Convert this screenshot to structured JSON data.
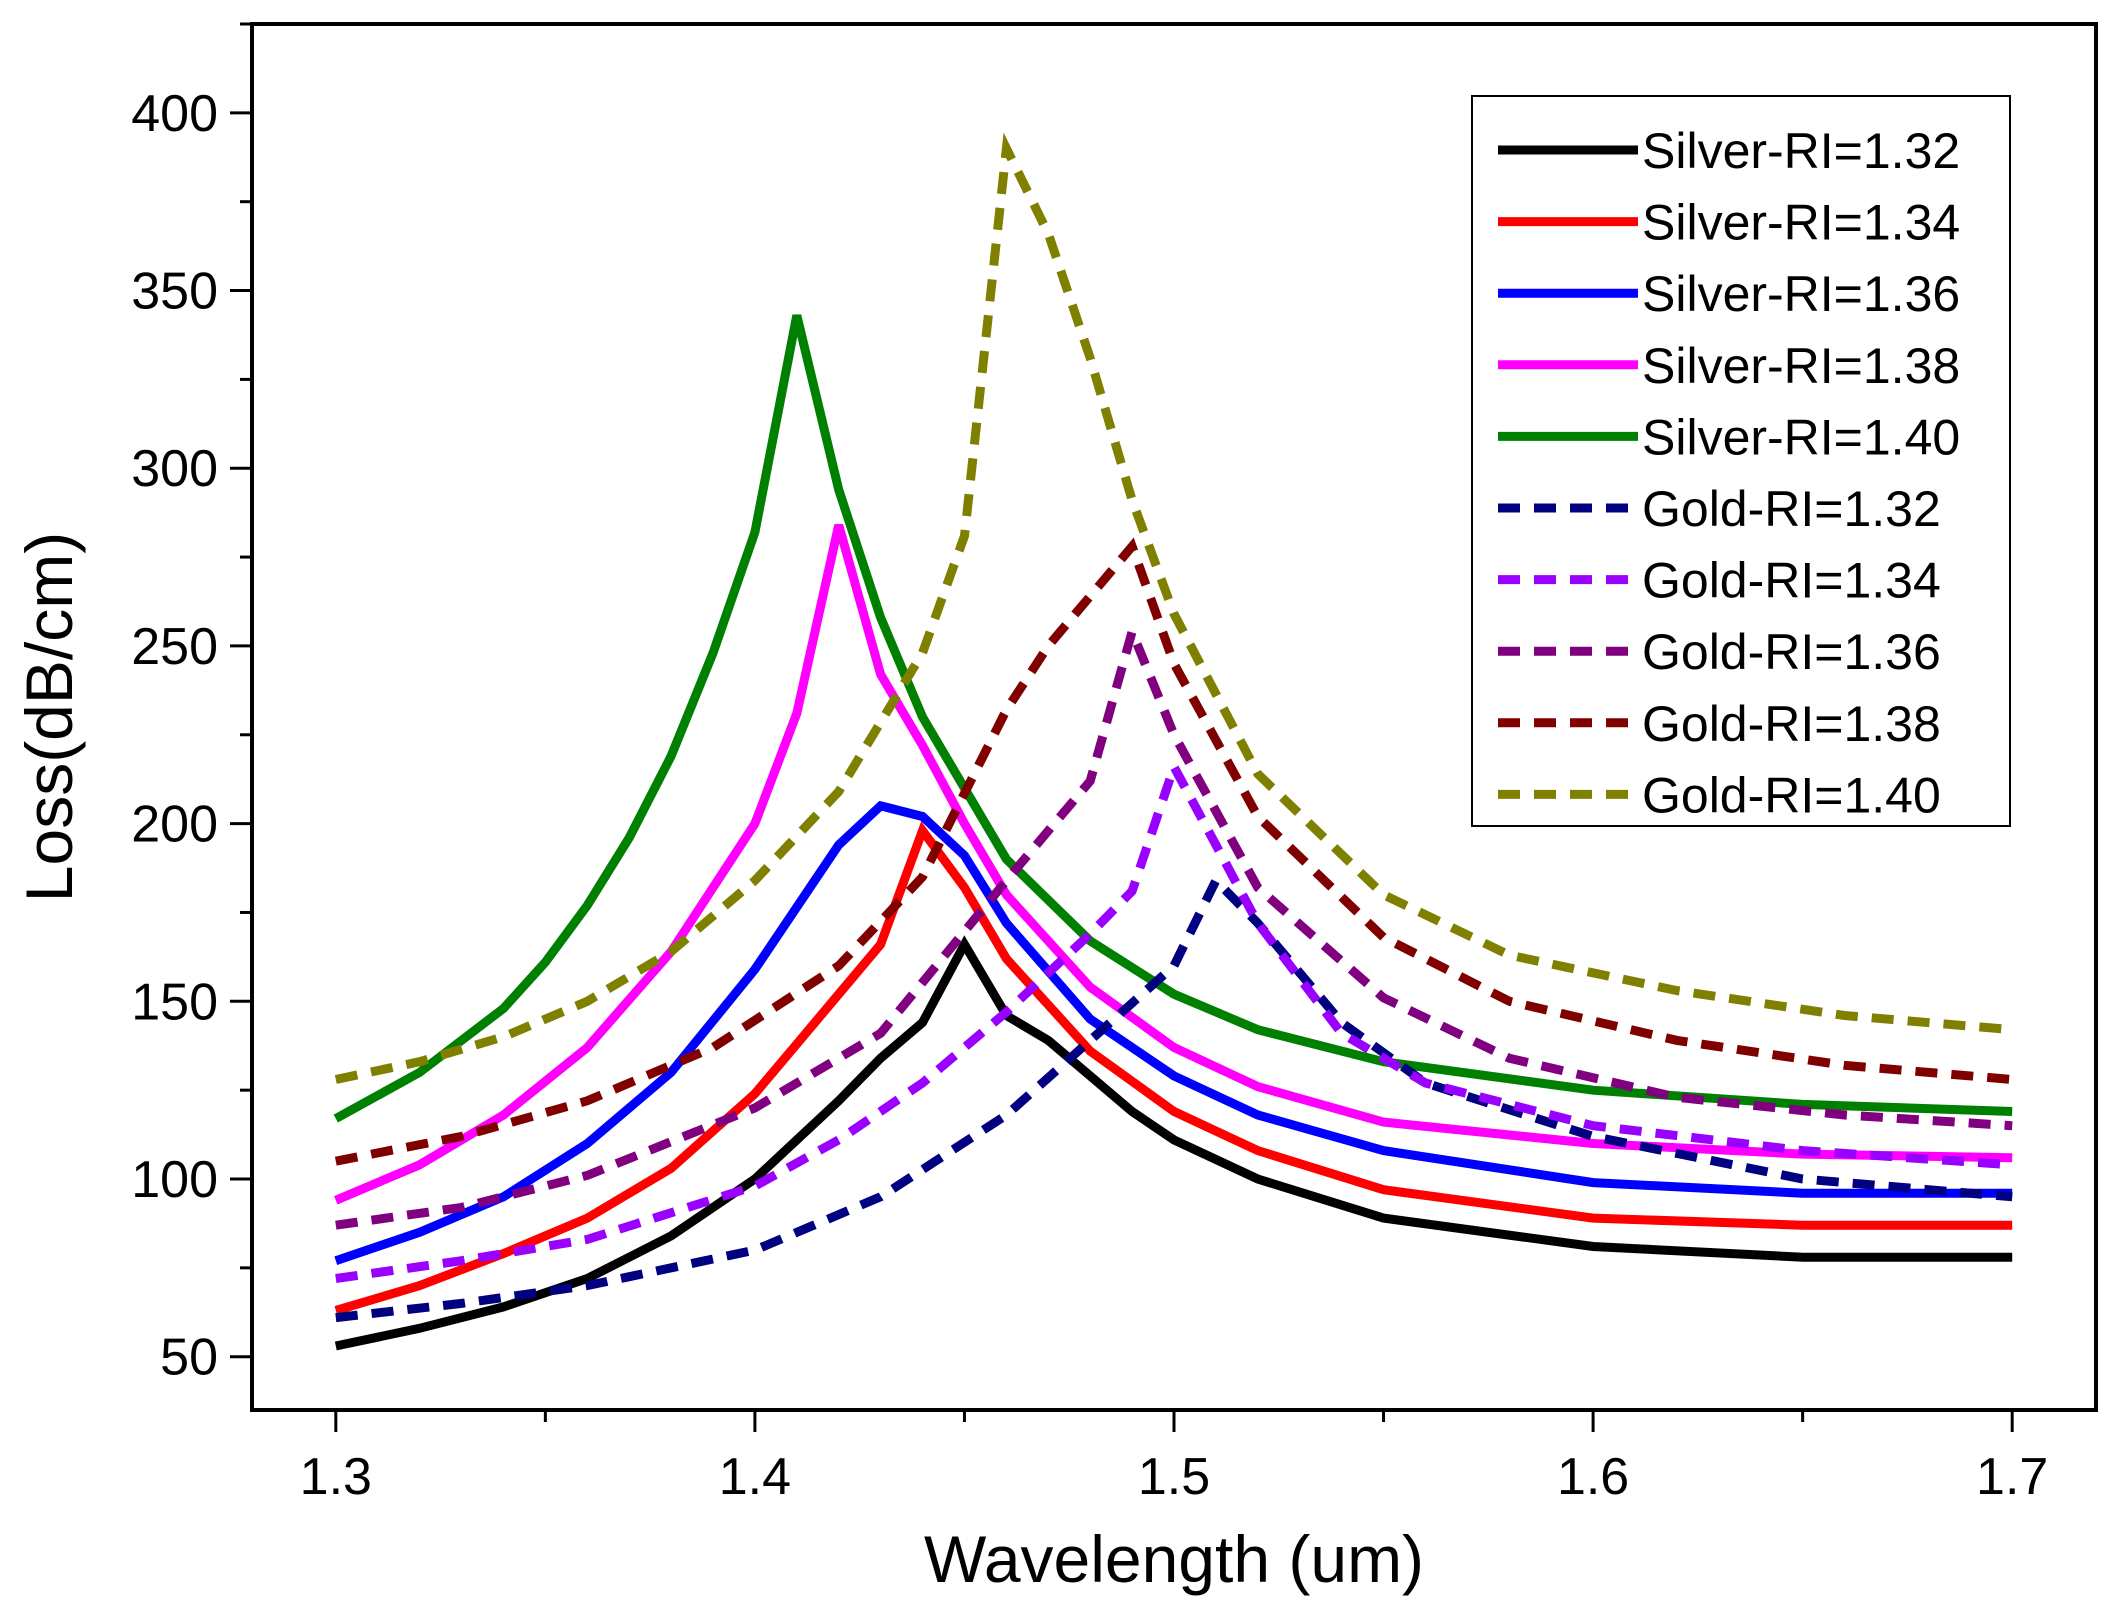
{
  "chart_data": {
    "type": "line",
    "title": "",
    "xlabel": "Wavelength (um)",
    "ylabel": "Loss(dB/cm)",
    "xlim": [
      1.28,
      1.72
    ],
    "ylim": [
      35,
      425
    ],
    "xticks": [
      1.3,
      1.4,
      1.5,
      1.6,
      1.7
    ],
    "xtick_labels": [
      "1.3",
      "1.4",
      "1.5",
      "1.6",
      "1.7"
    ],
    "x_minor_step": 0.05,
    "yticks": [
      50,
      100,
      150,
      200,
      250,
      300,
      350,
      400
    ],
    "ytick_labels": [
      "50",
      "100",
      "150",
      "200",
      "250",
      "300",
      "350",
      "400"
    ],
    "y_minor_step": 25,
    "grid": false,
    "legend_position": "top-right",
    "series": [
      {
        "name": "Silver-RI=1.32",
        "color": "#000000",
        "dash": "solid",
        "x": [
          1.3,
          1.32,
          1.34,
          1.36,
          1.38,
          1.4,
          1.42,
          1.43,
          1.44,
          1.45,
          1.46,
          1.47,
          1.48,
          1.49,
          1.5,
          1.52,
          1.55,
          1.6,
          1.65,
          1.7
        ],
        "y": [
          53,
          58,
          64,
          72,
          84,
          100,
          122,
          134,
          144,
          166,
          146,
          139,
          129,
          119,
          111,
          100,
          89,
          81,
          78,
          78
        ]
      },
      {
        "name": "Silver-RI=1.34",
        "color": "#ff0000",
        "dash": "solid",
        "x": [
          1.3,
          1.32,
          1.34,
          1.36,
          1.38,
          1.4,
          1.41,
          1.42,
          1.43,
          1.44,
          1.45,
          1.46,
          1.48,
          1.5,
          1.52,
          1.55,
          1.6,
          1.65,
          1.7
        ],
        "y": [
          63,
          70,
          79,
          89,
          103,
          124,
          138,
          152,
          166,
          198,
          182,
          162,
          136,
          119,
          108,
          97,
          89,
          87,
          87
        ]
      },
      {
        "name": "Silver-RI=1.36",
        "color": "#0000ff",
        "dash": "solid",
        "x": [
          1.3,
          1.32,
          1.34,
          1.36,
          1.38,
          1.4,
          1.42,
          1.43,
          1.44,
          1.45,
          1.46,
          1.48,
          1.5,
          1.52,
          1.55,
          1.6,
          1.65,
          1.7
        ],
        "y": [
          77,
          85,
          95,
          110,
          130,
          159,
          194,
          205,
          202,
          191,
          172,
          145,
          129,
          118,
          108,
          99,
          96,
          96
        ]
      },
      {
        "name": "Silver-RI=1.38",
        "color": "#ff00ff",
        "dash": "solid",
        "x": [
          1.3,
          1.32,
          1.34,
          1.36,
          1.38,
          1.4,
          1.41,
          1.42,
          1.43,
          1.44,
          1.45,
          1.46,
          1.48,
          1.5,
          1.52,
          1.55,
          1.6,
          1.65,
          1.7
        ],
        "y": [
          94,
          104,
          118,
          137,
          164,
          200,
          231,
          284,
          242,
          222,
          200,
          180,
          154,
          137,
          126,
          116,
          110,
          107,
          106
        ]
      },
      {
        "name": "Silver-RI=1.40",
        "color": "#008000",
        "dash": "solid",
        "x": [
          1.3,
          1.32,
          1.34,
          1.35,
          1.36,
          1.37,
          1.38,
          1.39,
          1.4,
          1.41,
          1.42,
          1.43,
          1.44,
          1.46,
          1.48,
          1.5,
          1.52,
          1.55,
          1.6,
          1.65,
          1.7
        ],
        "y": [
          117,
          130,
          148,
          161,
          177,
          196,
          219,
          248,
          282,
          343,
          294,
          258,
          230,
          190,
          167,
          152,
          142,
          133,
          125,
          121,
          119
        ]
      },
      {
        "name": "Gold-RI=1.32",
        "color": "#000080",
        "dash": "dashed",
        "x": [
          1.3,
          1.33,
          1.36,
          1.4,
          1.43,
          1.46,
          1.48,
          1.5,
          1.51,
          1.52,
          1.54,
          1.56,
          1.6,
          1.65,
          1.7
        ],
        "y": [
          61,
          65,
          70,
          80,
          95,
          118,
          139,
          160,
          184,
          172,
          144,
          127,
          112,
          100,
          95
        ]
      },
      {
        "name": "Gold-RI=1.34",
        "color": "#9900ff",
        "dash": "dashed",
        "x": [
          1.3,
          1.33,
          1.36,
          1.4,
          1.42,
          1.44,
          1.46,
          1.48,
          1.49,
          1.5,
          1.51,
          1.52,
          1.54,
          1.56,
          1.6,
          1.65,
          1.7
        ],
        "y": [
          72,
          77,
          83,
          98,
          111,
          127,
          147,
          169,
          181,
          216,
          194,
          172,
          141,
          127,
          115,
          108,
          104
        ]
      },
      {
        "name": "Gold-RI=1.36",
        "color": "#800080",
        "dash": "dashed",
        "x": [
          1.3,
          1.33,
          1.36,
          1.4,
          1.43,
          1.46,
          1.48,
          1.49,
          1.5,
          1.52,
          1.55,
          1.58,
          1.62,
          1.66,
          1.7
        ],
        "y": [
          87,
          92,
          101,
          120,
          141,
          184,
          212,
          254,
          225,
          182,
          151,
          134,
          123,
          118,
          115
        ]
      },
      {
        "name": "Gold-RI=1.38",
        "color": "#800000",
        "dash": "dashed",
        "x": [
          1.3,
          1.33,
          1.36,
          1.39,
          1.42,
          1.44,
          1.46,
          1.47,
          1.49,
          1.5,
          1.52,
          1.55,
          1.58,
          1.62,
          1.66,
          1.7
        ],
        "y": [
          105,
          112,
          122,
          137,
          160,
          185,
          232,
          250,
          278,
          245,
          202,
          168,
          150,
          139,
          132,
          128
        ]
      },
      {
        "name": "Gold-RI=1.40",
        "color": "#808000",
        "dash": "dashed",
        "x": [
          1.3,
          1.32,
          1.34,
          1.36,
          1.38,
          1.4,
          1.42,
          1.44,
          1.45,
          1.46,
          1.47,
          1.48,
          1.49,
          1.5,
          1.52,
          1.55,
          1.58,
          1.62,
          1.66,
          1.7
        ],
        "y": [
          128,
          133,
          140,
          150,
          164,
          184,
          209,
          248,
          281,
          390,
          366,
          331,
          291,
          259,
          214,
          180,
          163,
          153,
          146,
          142
        ]
      }
    ]
  }
}
